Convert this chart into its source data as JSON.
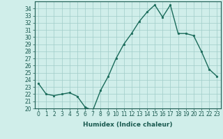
{
  "xlabel": "Humidex (Indice chaleur)",
  "x": [
    0,
    1,
    2,
    3,
    4,
    5,
    6,
    7,
    8,
    9,
    10,
    11,
    12,
    13,
    14,
    15,
    16,
    17,
    18,
    19,
    20,
    21,
    22,
    23
  ],
  "y": [
    23.5,
    22.0,
    21.8,
    22.0,
    22.2,
    21.7,
    20.2,
    19.7,
    22.5,
    24.5,
    27.0,
    29.0,
    30.5,
    32.2,
    33.5,
    34.5,
    32.8,
    34.5,
    30.5,
    30.5,
    30.2,
    28.0,
    25.5,
    24.5
  ],
  "ylim": [
    20,
    35
  ],
  "yticks": [
    20,
    21,
    22,
    23,
    24,
    25,
    26,
    27,
    28,
    29,
    30,
    31,
    32,
    33,
    34
  ],
  "xticks": [
    0,
    1,
    2,
    3,
    4,
    5,
    6,
    7,
    8,
    9,
    10,
    11,
    12,
    13,
    14,
    15,
    16,
    17,
    18,
    19,
    20,
    21,
    22,
    23
  ],
  "line_color": "#1a6b5a",
  "marker": "o",
  "marker_size": 1.8,
  "line_width": 1.0,
  "bg_color": "#d0eeea",
  "grid_color": "#a0ccc8",
  "tick_fontsize": 5.5,
  "label_fontsize": 6.5
}
